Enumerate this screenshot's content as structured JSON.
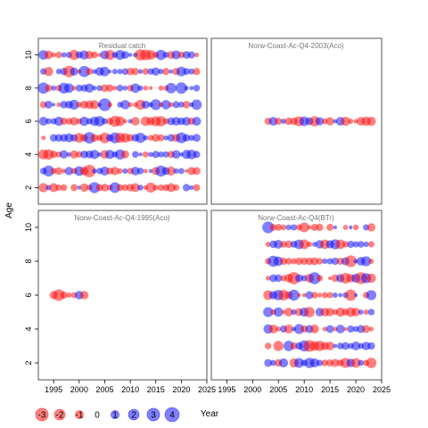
{
  "chart_data": {
    "type": "bubble-residual",
    "ylabel": "Age",
    "xlabel": "Year",
    "xlim": [
      1992,
      2025
    ],
    "ylim": [
      1,
      11
    ],
    "x_ticks": [
      1995,
      2000,
      2005,
      2010,
      2015,
      2020,
      2025
    ],
    "y_ticks": [
      2,
      4,
      6,
      8,
      10
    ],
    "colors": {
      "negative": "#ff0000",
      "positive": "#0000ff"
    },
    "panels": [
      {
        "title": "Residual catch",
        "years": [
          1993,
          2023
        ],
        "ages": [
          2,
          10
        ],
        "seed": 11
      },
      {
        "title": "Norw-Coast-Ac-Q4-2003(Aco)",
        "years": [
          2003,
          2023
        ],
        "ages": [
          6,
          6
        ],
        "seed": 23
      },
      {
        "title": "Norw-Coast-Ac-Q4-1995(Aco)",
        "years": [
          1995,
          2001
        ],
        "ages": [
          6,
          6
        ],
        "seed": 37
      },
      {
        "title": "Norw-Coast-Ac-Q4(BTr)",
        "years": [
          2003,
          2023
        ],
        "ages": [
          2,
          10
        ],
        "seed": 51
      }
    ],
    "legend": {
      "values": [
        -3,
        -2,
        -1,
        0,
        1,
        2,
        3,
        4
      ],
      "labels": [
        "-3",
        "-2",
        "-1",
        "0",
        "1",
        "2",
        "3",
        "4"
      ]
    }
  }
}
